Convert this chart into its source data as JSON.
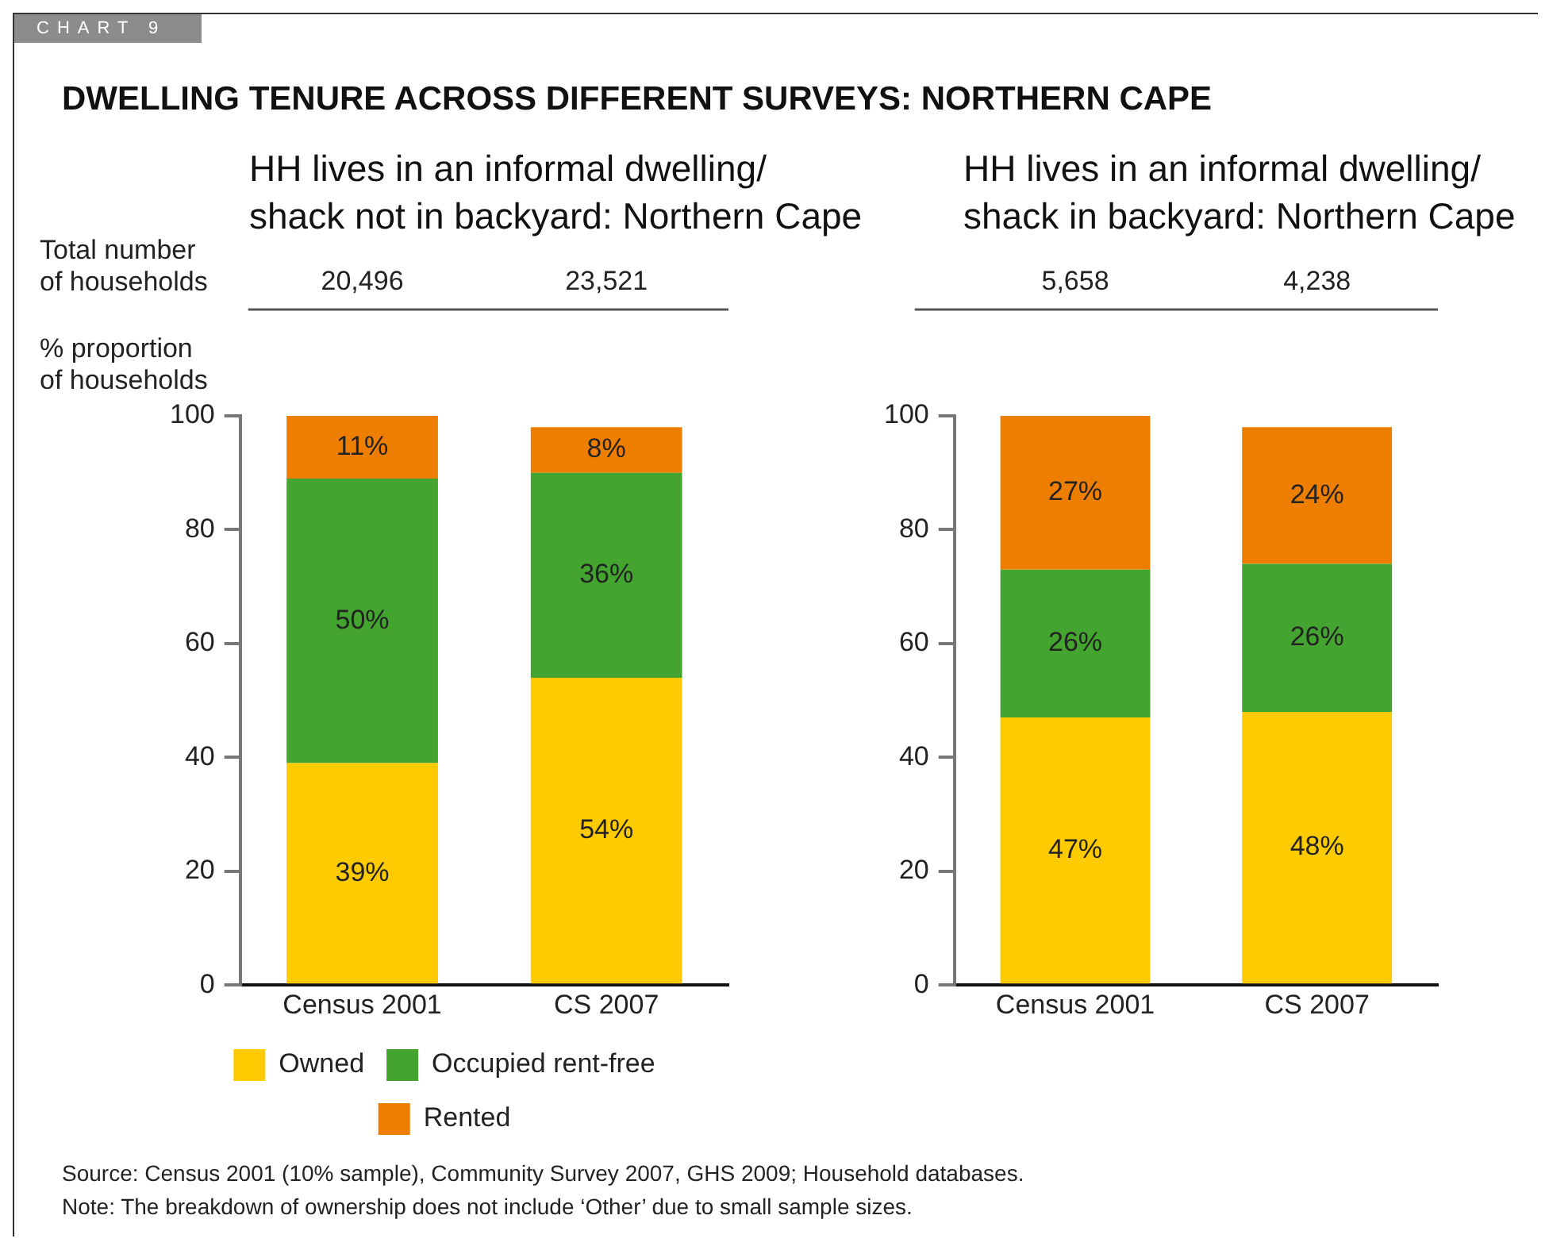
{
  "chart_data": [
    {
      "type": "bar",
      "title": "DWELLING TENURE ACROSS DIFFERENT SURVEYS: NORTHERN CAPE",
      "subtitle": "HH lives in an informal dwelling/\nshack not in backyard: Northern Cape",
      "ylabel": "% proportion\nof households",
      "categories": [
        "Census 2001",
        "CS 2007"
      ],
      "stacked": true,
      "ylim": [
        0,
        100
      ],
      "yticks": [
        0,
        20,
        40,
        60,
        80,
        100
      ],
      "grid": false,
      "legend": "bottom",
      "series": [
        {
          "name": "Owned",
          "color": "#fecb00",
          "values": [
            39,
            54
          ],
          "value_labels": [
            "39%",
            "54%"
          ]
        },
        {
          "name": "Occupied rent-free",
          "color": "#43a52f",
          "values": [
            50,
            36
          ],
          "value_labels": [
            "50%",
            "36%"
          ]
        },
        {
          "name": "Rented",
          "color": "#ee7e00",
          "values": [
            11,
            8
          ],
          "value_labels": [
            "11%",
            "8%"
          ]
        }
      ],
      "annotations": [
        "CHART 9",
        "Total number\nof households",
        "20,496",
        "23,521",
        "Source: Census 2001 (10% sample), Community Survey 2007, GHS 2009; Household databases.",
        "Note: The breakdown of ownership does not include ‘Other’ due to small sample sizes."
      ]
    },
    {
      "type": "bar",
      "subtitle": "HH lives in an informal dwelling/\nshack in backyard: Northern Cape",
      "categories": [
        "Census 2001",
        "CS 2007"
      ],
      "stacked": true,
      "ylim": [
        0,
        100
      ],
      "yticks": [
        0,
        20,
        40,
        60,
        80,
        100
      ],
      "grid": false,
      "series": [
        {
          "color": "#fecb00",
          "values": [
            47,
            48
          ],
          "value_labels": [
            "47%",
            "48%"
          ]
        },
        {
          "color": "#43a52f",
          "values": [
            26,
            26
          ],
          "value_labels": [
            "26%",
            "26%"
          ]
        },
        {
          "color": "#ee7e00",
          "values": [
            27,
            24
          ],
          "value_labels": [
            "27%",
            "24%"
          ]
        }
      ],
      "annotations": [
        "5,658",
        "4,238"
      ]
    }
  ]
}
